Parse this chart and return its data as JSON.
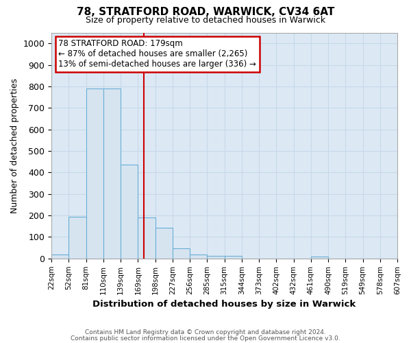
{
  "title": "78, STRATFORD ROAD, WARWICK, CV34 6AT",
  "subtitle": "Size of property relative to detached houses in Warwick",
  "xlabel": "Distribution of detached houses by size in Warwick",
  "ylabel": "Number of detached properties",
  "footnote1": "Contains HM Land Registry data © Crown copyright and database right 2024.",
  "footnote2": "Contains public sector information licensed under the Open Government Licence v3.0.",
  "bin_labels": [
    "22sqm",
    "52sqm",
    "81sqm",
    "110sqm",
    "139sqm",
    "169sqm",
    "198sqm",
    "227sqm",
    "256sqm",
    "285sqm",
    "315sqm",
    "344sqm",
    "373sqm",
    "402sqm",
    "432sqm",
    "461sqm",
    "490sqm",
    "519sqm",
    "549sqm",
    "578sqm",
    "607sqm"
  ],
  "bar_values": [
    18,
    195,
    790,
    790,
    435,
    190,
    143,
    48,
    18,
    13,
    11,
    0,
    0,
    0,
    0,
    8,
    0,
    0,
    0,
    0
  ],
  "bar_color": "#d6e4f0",
  "bar_edge_color": "#6aaed6",
  "vline_color": "#cc0000",
  "annotation_text": "78 STRATFORD ROAD: 179sqm\n← 87% of detached houses are smaller (2,265)\n13% of semi-detached houses are larger (336) →",
  "annotation_box_color": "#ffffff",
  "annotation_box_edge_color": "#cc0000",
  "ylim": [
    0,
    1050
  ],
  "yticks": [
    0,
    100,
    200,
    300,
    400,
    500,
    600,
    700,
    800,
    900,
    1000
  ],
  "grid_color": "#c8d8e8",
  "background_color": "#dce9f5",
  "plot_bg_color": "#dce9f5"
}
